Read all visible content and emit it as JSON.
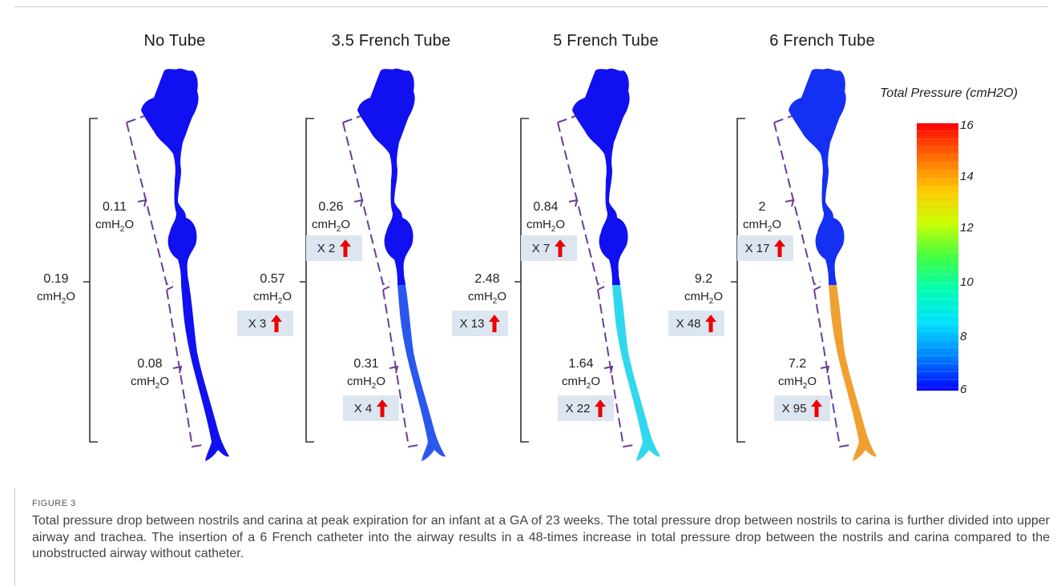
{
  "panels": [
    {
      "title": "No Tube",
      "total": "0.19",
      "upper": "0.11",
      "trachea": "0.08",
      "total_factor": "",
      "upper_factor": "",
      "trachea_factor": "",
      "color_upper": "#1010f0",
      "color_trachea": "#1010f0"
    },
    {
      "title": "3.5 French Tube",
      "total": "0.57",
      "upper": "0.26",
      "trachea": "0.31",
      "total_factor": "X 3",
      "upper_factor": "X 2",
      "trachea_factor": "X 4",
      "color_upper": "#1010f0",
      "color_trachea": "#2a58ee"
    },
    {
      "title": "5 French Tube",
      "total": "2.48",
      "upper": "0.84",
      "trachea": "1.64",
      "total_factor": "X 13",
      "upper_factor": "X 7",
      "trachea_factor": "X 22",
      "color_upper": "#1010f0",
      "color_trachea": "#30d8ee"
    },
    {
      "title": "6 French Tube",
      "total": "9.2",
      "upper": "2",
      "trachea": "7.2",
      "total_factor": "X 48",
      "upper_factor": "X 17",
      "trachea_factor": "X 95",
      "color_upper": "#1430f2",
      "color_trachea": "#f0a030"
    }
  ],
  "unit_text": "cmH",
  "unit_sub": "2",
  "unit_tail": "O",
  "legend": {
    "title": "Total Pressure (cmH2O)",
    "ticks": [
      "16",
      "14",
      "12",
      "10",
      "8",
      "6"
    ],
    "colors": [
      "#ff0000",
      "#ff6a00",
      "#ffc800",
      "#c8ff00",
      "#40ff40",
      "#00ffb4",
      "#00e0ff",
      "#0080ff",
      "#0000ff"
    ]
  },
  "caption": {
    "label": "FIGURE 3",
    "text": "Total pressure drop between nostrils and carina at peak expiration for an infant at a GA of 23 weeks. The total pressure drop between nostrils to carina is further divided into upper airway and trachea. The insertion of a 6 French catheter into the airway results in a 48-times increase in total pressure drop between the nostrils and carina compared to the unobstructed airway without catheter."
  },
  "colors": {
    "bracket": "#6a3d9a",
    "badge_bg": "#dce6f1",
    "arrow": "#ee0000"
  }
}
